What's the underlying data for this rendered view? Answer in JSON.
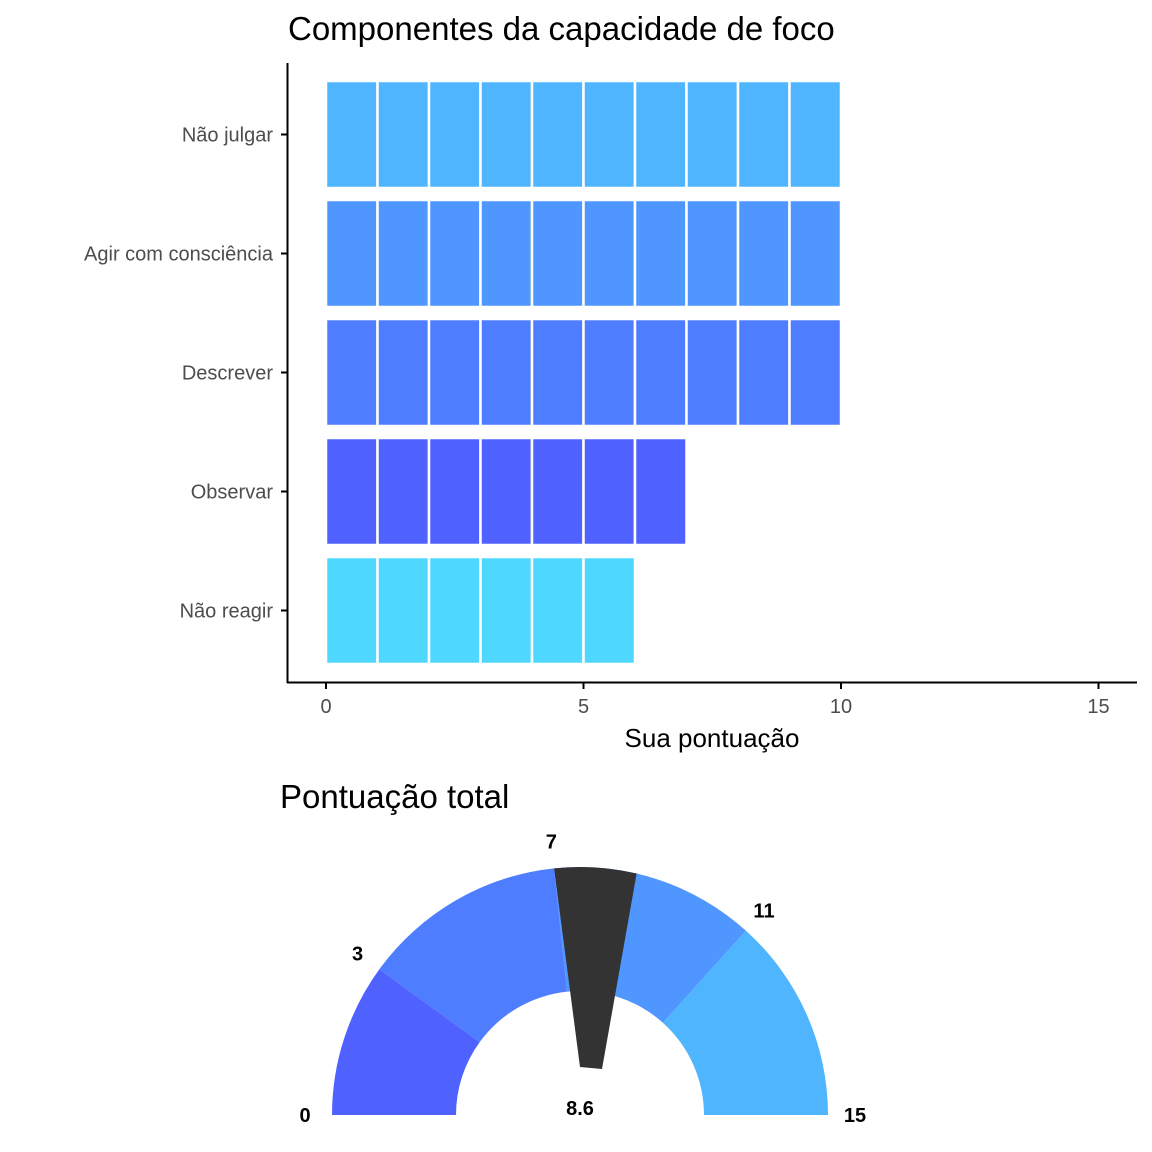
{
  "chart_data": [
    {
      "type": "bar",
      "orientation": "horizontal",
      "title": "Componentes da capacidade de foco",
      "xlabel": "Sua pontuação",
      "ylabel": "",
      "xlim": [
        0,
        15
      ],
      "x_ticks": [
        "0",
        "5",
        "10",
        "15"
      ],
      "unit_segments": true,
      "grid": false,
      "categories": [
        "Não julgar",
        "Agir com consciência",
        "Descrever",
        "Observar",
        "Não reagir"
      ],
      "values": [
        10,
        10,
        10,
        7,
        6
      ],
      "colors": [
        "#4fb5ff",
        "#4f97ff",
        "#4f7dff",
        "#4f62ff",
        "#4fd8ff"
      ]
    },
    {
      "type": "gauge",
      "title": "Pontuação total",
      "range": [
        0,
        15
      ],
      "value": 8.6,
      "value_label": "8.6",
      "band_labels": [
        "0",
        "3",
        "7",
        "11",
        "15"
      ],
      "bands": [
        {
          "from": 0,
          "to": 3,
          "color": "#4f62ff"
        },
        {
          "from": 3,
          "to": 7,
          "color": "#4f7dff"
        },
        {
          "from": 7,
          "to": 11,
          "color": "#4f97ff"
        },
        {
          "from": 11,
          "to": 15,
          "color": "#4fb5ff"
        }
      ],
      "needle_color": "#333333"
    }
  ]
}
